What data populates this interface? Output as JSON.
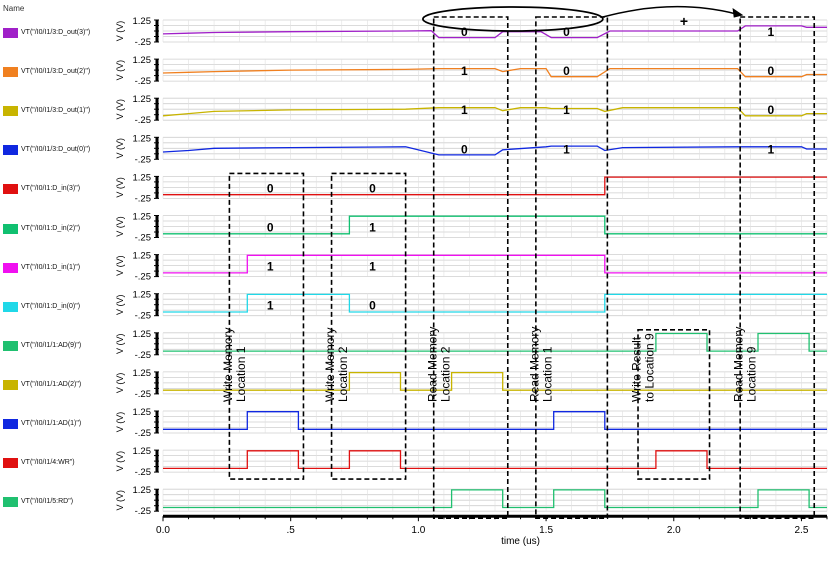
{
  "legend_header": "Name",
  "chart_data": {
    "type": "line",
    "chart_kind": "digital timing waveforms (stacked strips)",
    "xlabel": "time (us)",
    "xlim": [
      0,
      2.6
    ],
    "xticks": [
      {
        "v": 0,
        "label": "0.0"
      },
      {
        "v": 0.5,
        "label": ".5"
      },
      {
        "v": 1.0,
        "label": "1.0"
      },
      {
        "v": 1.5,
        "label": "1.5"
      },
      {
        "v": 2.0,
        "label": "2.0"
      },
      {
        "v": 2.5,
        "label": "2.5"
      }
    ],
    "ylabel": "V (V)",
    "y_top_label": "1.25",
    "y_bottom_label": "-.25",
    "grid": true,
    "legend_placement": "left",
    "series": [
      {
        "name": "VT(\"/I0/I1/3:D_out(3)\")",
        "color": "#a020c8",
        "points": [
          [
            0,
            0.3
          ],
          [
            0.1,
            0.35
          ],
          [
            0.2,
            0.4
          ],
          [
            0.5,
            0.45
          ],
          [
            0.95,
            0.5
          ],
          [
            1.05,
            0.52
          ],
          [
            1.08,
            0.05
          ],
          [
            1.3,
            0.05
          ],
          [
            1.33,
            0.45
          ],
          [
            1.48,
            0.45
          ],
          [
            1.52,
            0.05
          ],
          [
            1.7,
            0.05
          ],
          [
            1.75,
            0.5
          ],
          [
            2.25,
            0.5
          ],
          [
            2.28,
            0.85
          ],
          [
            2.5,
            0.85
          ],
          [
            2.52,
            0.75
          ],
          [
            2.6,
            0.75
          ]
        ]
      },
      {
        "name": "VT(\"/I0/I1/3:D_out(2)\")",
        "color": "#f08020",
        "points": [
          [
            0,
            0.3
          ],
          [
            0.1,
            0.35
          ],
          [
            0.2,
            0.4
          ],
          [
            0.5,
            0.5
          ],
          [
            0.95,
            0.55
          ],
          [
            1.08,
            0.6
          ],
          [
            1.3,
            0.6
          ],
          [
            1.33,
            0.4
          ],
          [
            1.4,
            0.6
          ],
          [
            1.5,
            0.6
          ],
          [
            1.52,
            0.05
          ],
          [
            1.7,
            0.05
          ],
          [
            1.75,
            0.6
          ],
          [
            2.25,
            0.6
          ],
          [
            2.28,
            0.05
          ],
          [
            2.5,
            0.05
          ],
          [
            2.52,
            0.2
          ],
          [
            2.6,
            0.2
          ]
        ]
      },
      {
        "name": "VT(\"/I0/I1/3:D_out(1)\")",
        "color": "#c8b400",
        "points": [
          [
            0,
            0.05
          ],
          [
            0.1,
            0.2
          ],
          [
            0.2,
            0.35
          ],
          [
            0.5,
            0.45
          ],
          [
            0.95,
            0.5
          ],
          [
            1.08,
            0.6
          ],
          [
            1.3,
            0.6
          ],
          [
            1.33,
            0.4
          ],
          [
            1.4,
            0.6
          ],
          [
            1.5,
            0.6
          ],
          [
            1.52,
            0.55
          ],
          [
            1.7,
            0.55
          ],
          [
            1.73,
            0.35
          ],
          [
            1.8,
            0.6
          ],
          [
            2.25,
            0.6
          ],
          [
            2.28,
            0.05
          ],
          [
            2.5,
            0.05
          ],
          [
            2.52,
            0.2
          ],
          [
            2.6,
            0.2
          ]
        ]
      },
      {
        "name": "VT(\"/I0/I1/3:D_out(0)\")",
        "color": "#1028e0",
        "points": [
          [
            0,
            0.25
          ],
          [
            0.1,
            0.35
          ],
          [
            0.2,
            0.5
          ],
          [
            0.5,
            0.55
          ],
          [
            0.95,
            0.6
          ],
          [
            1.08,
            0.05
          ],
          [
            1.3,
            0.05
          ],
          [
            1.33,
            0.4
          ],
          [
            1.5,
            0.6
          ],
          [
            1.52,
            0.65
          ],
          [
            1.7,
            0.65
          ],
          [
            1.73,
            0.35
          ],
          [
            1.8,
            0.55
          ],
          [
            2.25,
            0.6
          ],
          [
            2.5,
            0.6
          ],
          [
            2.52,
            0.45
          ],
          [
            2.6,
            0.45
          ]
        ]
      },
      {
        "name": "VT(\"/I0/I1:D_in(3)\")",
        "color": "#e01010",
        "points": [
          [
            0,
            0
          ],
          [
            1.73,
            0
          ],
          [
            1.73,
            1.2
          ],
          [
            2.6,
            1.2
          ]
        ]
      },
      {
        "name": "VT(\"/I0/I1:D_in(2)\")",
        "color": "#10c070",
        "points": [
          [
            0,
            0
          ],
          [
            0.73,
            0
          ],
          [
            0.73,
            1.2
          ],
          [
            1.73,
            1.2
          ],
          [
            1.73,
            0
          ],
          [
            2.6,
            0
          ]
        ]
      },
      {
        "name": "VT(\"/I0/I1:D_in(1)\")",
        "color": "#f010f0",
        "points": [
          [
            0,
            0
          ],
          [
            0.33,
            0
          ],
          [
            0.33,
            1.2
          ],
          [
            1.73,
            1.2
          ],
          [
            1.73,
            0
          ],
          [
            2.6,
            0
          ]
        ]
      },
      {
        "name": "VT(\"/I0/I1:D_in(0)\")",
        "color": "#20d8e8",
        "points": [
          [
            0,
            0
          ],
          [
            0.33,
            0
          ],
          [
            0.33,
            1.2
          ],
          [
            0.73,
            1.2
          ],
          [
            0.73,
            0
          ],
          [
            1.73,
            0
          ],
          [
            1.73,
            1.2
          ],
          [
            2.6,
            1.2
          ]
        ]
      },
      {
        "name": "VT(\"/I0/I1/1:AD(9)\")",
        "color": "#20c070",
        "points": [
          [
            0,
            0
          ],
          [
            1.93,
            0
          ],
          [
            1.93,
            1.2
          ],
          [
            2.13,
            1.2
          ],
          [
            2.13,
            0
          ],
          [
            2.33,
            0
          ],
          [
            2.33,
            1.2
          ],
          [
            2.53,
            1.2
          ],
          [
            2.53,
            0
          ],
          [
            2.6,
            0
          ]
        ]
      },
      {
        "name": "VT(\"/I0/I1/1:AD(2)\")",
        "color": "#c8b400",
        "points": [
          [
            0,
            0
          ],
          [
            0.73,
            0
          ],
          [
            0.73,
            1.2
          ],
          [
            0.93,
            1.2
          ],
          [
            0.93,
            0
          ],
          [
            1.13,
            0
          ],
          [
            1.13,
            1.2
          ],
          [
            1.33,
            1.2
          ],
          [
            1.33,
            0
          ],
          [
            2.6,
            0
          ]
        ]
      },
      {
        "name": "VT(\"/I0/I1/1:AD(1)\")",
        "color": "#1028e0",
        "points": [
          [
            0,
            0
          ],
          [
            0.33,
            0
          ],
          [
            0.33,
            1.2
          ],
          [
            0.53,
            1.2
          ],
          [
            0.53,
            0
          ],
          [
            1.53,
            0
          ],
          [
            1.53,
            1.2
          ],
          [
            1.73,
            1.2
          ],
          [
            1.73,
            0
          ],
          [
            2.6,
            0
          ]
        ]
      },
      {
        "name": "VT(\"/I0/I1/4:WR\")",
        "color": "#e01010",
        "points": [
          [
            0,
            0
          ],
          [
            0.33,
            0
          ],
          [
            0.33,
            1.2
          ],
          [
            0.53,
            1.2
          ],
          [
            0.53,
            0
          ],
          [
            0.73,
            0
          ],
          [
            0.73,
            1.2
          ],
          [
            0.93,
            1.2
          ],
          [
            0.93,
            0
          ],
          [
            1.93,
            0
          ],
          [
            1.93,
            1.2
          ],
          [
            2.13,
            1.2
          ],
          [
            2.13,
            0
          ],
          [
            2.6,
            0
          ]
        ]
      },
      {
        "name": "VT(\"/I0/I1/5:RD\")",
        "color": "#20c070",
        "points": [
          [
            0,
            0
          ],
          [
            1.13,
            0
          ],
          [
            1.13,
            1.2
          ],
          [
            1.33,
            1.2
          ],
          [
            1.33,
            0
          ],
          [
            1.53,
            0
          ],
          [
            1.53,
            1.2
          ],
          [
            1.73,
            1.2
          ],
          [
            1.73,
            0
          ],
          [
            2.33,
            0
          ],
          [
            2.33,
            1.2
          ],
          [
            2.53,
            1.2
          ],
          [
            2.53,
            0
          ],
          [
            2.6,
            0
          ]
        ]
      }
    ],
    "bit_annotations": [
      {
        "row": 0,
        "x": 1.18,
        "text": "0"
      },
      {
        "row": 0,
        "x": 1.58,
        "text": "0"
      },
      {
        "row": 0,
        "x": 2.38,
        "text": "1"
      },
      {
        "row": 1,
        "x": 1.18,
        "text": "1"
      },
      {
        "row": 1,
        "x": 1.58,
        "text": "0"
      },
      {
        "row": 1,
        "x": 2.38,
        "text": "0"
      },
      {
        "row": 2,
        "x": 1.18,
        "text": "1"
      },
      {
        "row": 2,
        "x": 1.58,
        "text": "1"
      },
      {
        "row": 2,
        "x": 2.38,
        "text": "0"
      },
      {
        "row": 3,
        "x": 1.18,
        "text": "0"
      },
      {
        "row": 3,
        "x": 1.58,
        "text": "1"
      },
      {
        "row": 3,
        "x": 2.38,
        "text": "1"
      },
      {
        "row": 4,
        "x": 0.42,
        "text": "0"
      },
      {
        "row": 4,
        "x": 0.82,
        "text": "0"
      },
      {
        "row": 5,
        "x": 0.42,
        "text": "0"
      },
      {
        "row": 5,
        "x": 0.82,
        "text": "1"
      },
      {
        "row": 6,
        "x": 0.42,
        "text": "1"
      },
      {
        "row": 6,
        "x": 0.82,
        "text": "1"
      },
      {
        "row": 7,
        "x": 0.42,
        "text": "1"
      },
      {
        "row": 7,
        "x": 0.82,
        "text": "0"
      }
    ],
    "operation_labels": [
      {
        "x": 0.27,
        "lines": [
          "Write Memory",
          "Location 1"
        ]
      },
      {
        "x": 0.67,
        "lines": [
          "Write Memory",
          "Location 2"
        ]
      },
      {
        "x": 1.07,
        "lines": [
          "Read Memory",
          "Location 2"
        ]
      },
      {
        "x": 1.47,
        "lines": [
          "Read Memory",
          "Location 1"
        ]
      },
      {
        "x": 1.87,
        "lines": [
          "Write    Result",
          "to Location 9"
        ]
      },
      {
        "x": 2.27,
        "lines": [
          "Read Memory",
          "Location 9"
        ]
      }
    ],
    "plus_symbol": "+"
  }
}
